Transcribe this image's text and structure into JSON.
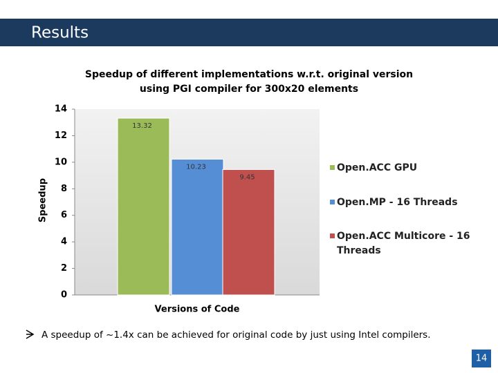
{
  "header": {
    "title": "Results"
  },
  "chart_data": {
    "type": "bar",
    "title": "Speedup of different implementations w.r.t. original version using PGI compiler for 300x20 elements",
    "x_label": "Versions of Code",
    "y_label": "Speedup",
    "categories": [
      null
    ],
    "series": [
      {
        "name": "Open.ACC GPU",
        "color": "#9bbb59",
        "values": [
          13.32
        ]
      },
      {
        "name": "Open.MP - 16 Threads",
        "color": "#558ed5",
        "values": [
          10.23
        ]
      },
      {
        "name": "Open.ACC Multicore - 16 Threads",
        "color": "#c0504d",
        "values": [
          9.45
        ]
      }
    ],
    "ylim": [
      0,
      14
    ],
    "yticks": [
      0,
      2,
      4,
      6,
      8,
      10,
      12,
      14
    ],
    "legend": "right"
  },
  "footer": {
    "bullet": "A speedup of ~1.4x can be achieved for original code by just using Intel compilers.",
    "page_number": "14"
  }
}
